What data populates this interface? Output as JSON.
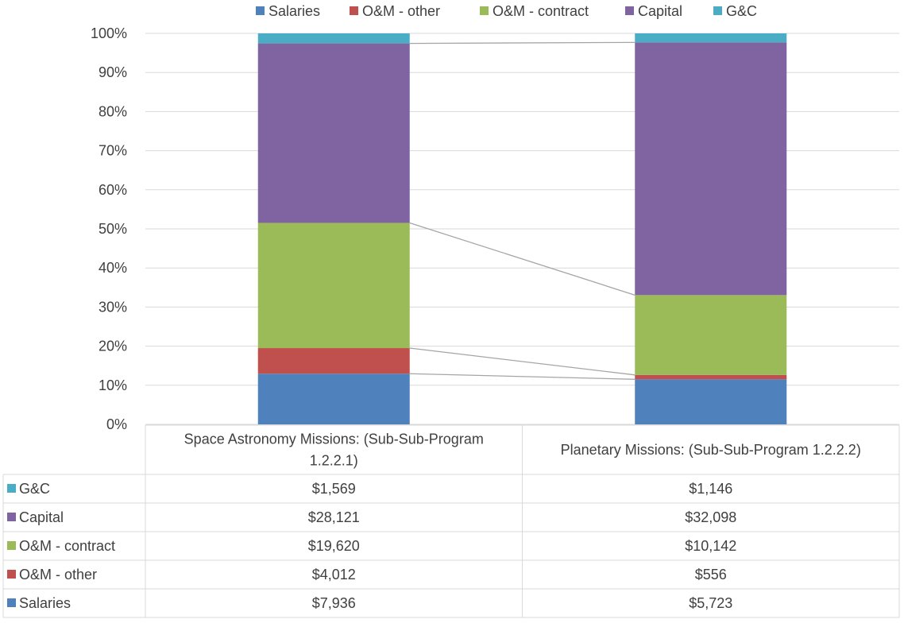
{
  "chart_data": {
    "type": "bar",
    "stacked": "percent",
    "categories": [
      "Space Astronomy Missions: (Sub-Sub-Program 1.2.2.1)",
      "Planetary Missions: (Sub-Sub-Program 1.2.2.2)"
    ],
    "category_lines": [
      [
        "Space Astronomy Missions: (Sub-Sub-Program",
        "1.2.2.1)"
      ],
      [
        "Planetary Missions: (Sub-Sub-Program 1.2.2.2)"
      ]
    ],
    "series": [
      {
        "name": "Salaries",
        "values": [
          7936,
          5723
        ],
        "labels": [
          "$7,936",
          "$5,723"
        ],
        "color": "#4f81bd"
      },
      {
        "name": "O&M - other",
        "values": [
          4012,
          556
        ],
        "labels": [
          "$4,012",
          "$556"
        ],
        "color": "#c0504d"
      },
      {
        "name": "O&M - contract",
        "values": [
          19620,
          10142
        ],
        "labels": [
          "$19,620",
          "$10,142"
        ],
        "color": "#9bbb59"
      },
      {
        "name": "Capital",
        "values": [
          28121,
          32098
        ],
        "labels": [
          "$28,121",
          "$32,098"
        ],
        "color": "#8064a2"
      },
      {
        "name": "G&C",
        "values": [
          1569,
          1146
        ],
        "labels": [
          "$1,569",
          "$1,146"
        ],
        "color": "#4bacc6"
      }
    ],
    "yticks": [
      "0%",
      "10%",
      "20%",
      "30%",
      "40%",
      "50%",
      "60%",
      "70%",
      "80%",
      "90%",
      "100%"
    ],
    "ylim": [
      0,
      100
    ],
    "grid": true,
    "series_lines": true,
    "legend": "top",
    "data_table": true
  }
}
